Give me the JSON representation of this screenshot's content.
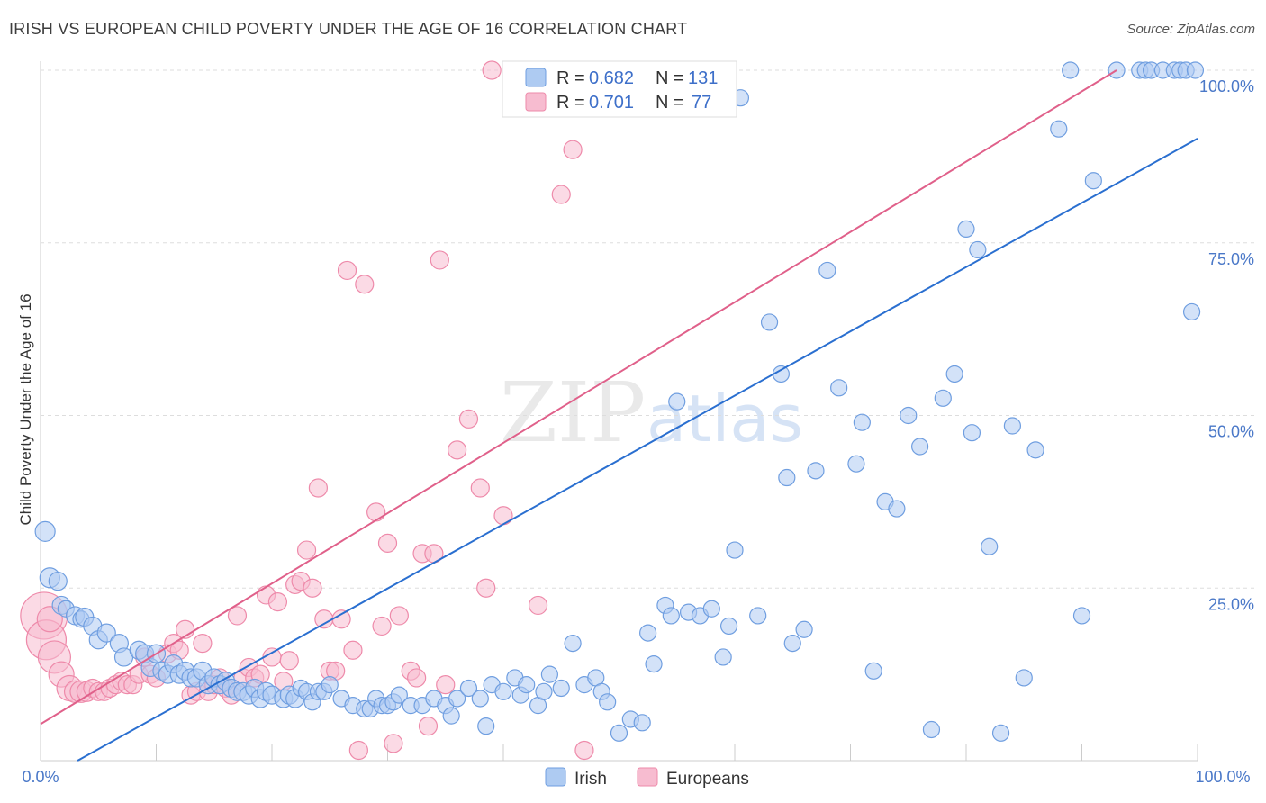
{
  "title": "IRISH VS EUROPEAN CHILD POVERTY UNDER THE AGE OF 16 CORRELATION CHART",
  "source": "Source: ZipAtlas.com",
  "watermark": {
    "zip": "ZIP",
    "atlas": "atlas"
  },
  "colors": {
    "irish_fill": "#aecbf2",
    "irish_stroke": "#6f9ee0",
    "irish_line": "#2a6fd0",
    "europeans_fill": "#f7bcd0",
    "europeans_stroke": "#ee8aaa",
    "europeans_line": "#e0608a",
    "tick_text": "#4a78c8",
    "grid": "#dddddd"
  },
  "legend": {
    "r_label": "R =",
    "n_label": "N =",
    "items": [
      {
        "series": "Irish",
        "r": "0.682",
        "n": "131"
      },
      {
        "series": "Europeans",
        "r": "0.701",
        "n": "77"
      }
    ]
  },
  "chart_data": {
    "type": "scatter",
    "title": "IRISH VS EUROPEAN CHILD POVERTY UNDER THE AGE OF 16 CORRELATION CHART",
    "xlabel": "",
    "ylabel": "Child Poverty Under the Age of 16",
    "xlim": [
      0,
      100
    ],
    "ylim": [
      0,
      100
    ],
    "x_tick_labels": [
      "0.0%",
      "100.0%"
    ],
    "y_tick_labels": [
      "25.0%",
      "50.0%",
      "75.0%",
      "100.0%"
    ],
    "y_ticks": [
      25,
      50,
      75,
      100
    ],
    "grid": true,
    "legend_position": "top-center",
    "series": [
      {
        "name": "Irish",
        "trendline": [
          [
            3.2,
            0
          ],
          [
            100,
            90.1
          ]
        ],
        "points": [
          [
            0.4,
            33.2,
            11
          ],
          [
            0.8,
            26.5,
            11
          ],
          [
            1.5,
            26,
            10
          ],
          [
            1.8,
            22.5,
            10
          ],
          [
            2.2,
            22,
            9
          ],
          [
            3,
            21,
            10
          ],
          [
            3.5,
            20.5,
            9
          ],
          [
            3.8,
            20.8,
            10
          ],
          [
            4.5,
            19.5,
            10
          ],
          [
            5,
            17.5,
            10
          ],
          [
            5.7,
            18.5,
            10
          ],
          [
            6.8,
            17,
            10
          ],
          [
            7.2,
            15,
            10
          ],
          [
            8.5,
            16,
            10
          ],
          [
            9,
            15.5,
            10
          ],
          [
            9.5,
            13.5,
            10
          ],
          [
            10,
            15.5,
            10
          ],
          [
            10.5,
            13,
            10
          ],
          [
            11,
            12.5,
            10
          ],
          [
            11.5,
            14,
            10
          ],
          [
            12,
            12.5,
            10
          ],
          [
            12.5,
            13,
            10
          ],
          [
            13,
            12,
            10
          ],
          [
            13.5,
            12,
            10
          ],
          [
            14,
            13,
            10
          ],
          [
            14.5,
            11,
            10
          ],
          [
            15,
            12,
            10
          ],
          [
            15.5,
            11,
            10
          ],
          [
            16,
            11.5,
            10
          ],
          [
            16.5,
            10.5,
            10
          ],
          [
            17,
            10,
            10
          ],
          [
            17.5,
            10,
            10
          ],
          [
            18,
            9.5,
            10
          ],
          [
            18.5,
            10.5,
            10
          ],
          [
            19,
            9,
            10
          ],
          [
            19.5,
            10,
            10
          ],
          [
            20,
            9.5,
            10
          ],
          [
            21,
            9,
            10
          ],
          [
            21.5,
            9.5,
            10
          ],
          [
            22,
            9,
            10
          ],
          [
            22.5,
            10.5,
            9
          ],
          [
            23,
            10,
            9
          ],
          [
            23.5,
            8.5,
            9
          ],
          [
            24,
            10,
            9
          ],
          [
            24.5,
            10,
            9
          ],
          [
            25,
            11,
            9
          ],
          [
            26,
            9,
            9
          ],
          [
            27,
            8,
            9
          ],
          [
            28,
            7.5,
            9
          ],
          [
            28.5,
            7.5,
            9
          ],
          [
            29,
            9,
            9
          ],
          [
            29.5,
            8,
            9
          ],
          [
            30,
            8,
            9
          ],
          [
            30.5,
            8.5,
            9
          ],
          [
            31,
            9.5,
            9
          ],
          [
            32,
            8,
            9
          ],
          [
            33,
            8,
            9
          ],
          [
            34,
            9,
            9
          ],
          [
            35,
            8,
            9
          ],
          [
            35.5,
            6.5,
            9
          ],
          [
            36,
            9,
            9
          ],
          [
            37,
            10.5,
            9
          ],
          [
            38,
            9,
            9
          ],
          [
            38.5,
            5,
            9
          ],
          [
            39,
            11,
            9
          ],
          [
            40,
            10,
            9
          ],
          [
            41,
            12,
            9
          ],
          [
            41.5,
            9.5,
            9
          ],
          [
            42,
            11,
            9
          ],
          [
            43,
            8,
            9
          ],
          [
            43.5,
            10,
            9
          ],
          [
            44,
            12.5,
            9
          ],
          [
            45,
            10.5,
            9
          ],
          [
            46,
            17,
            9
          ],
          [
            47,
            11,
            9
          ],
          [
            48,
            12,
            9
          ],
          [
            48.5,
            10,
            9
          ],
          [
            49,
            8.5,
            9
          ],
          [
            50,
            4,
            9
          ],
          [
            51,
            6,
            9
          ],
          [
            52,
            5.5,
            9
          ],
          [
            52.5,
            18.5,
            9
          ],
          [
            53,
            14,
            9
          ],
          [
            54,
            22.5,
            9
          ],
          [
            54.5,
            21,
            9
          ],
          [
            55,
            52,
            9
          ],
          [
            56,
            21.5,
            9
          ],
          [
            57,
            21,
            9
          ],
          [
            58,
            22,
            9
          ],
          [
            59,
            15,
            9
          ],
          [
            59.5,
            19.5,
            9
          ],
          [
            60,
            30.5,
            9
          ],
          [
            60.5,
            96,
            9
          ],
          [
            62,
            21,
            9
          ],
          [
            63,
            63.5,
            9
          ],
          [
            64,
            56,
            9
          ],
          [
            64.5,
            41,
            9
          ],
          [
            65,
            17,
            9
          ],
          [
            66,
            19,
            9
          ],
          [
            67,
            42,
            9
          ],
          [
            68,
            71,
            9
          ],
          [
            69,
            54,
            9
          ],
          [
            70.5,
            43,
            9
          ],
          [
            71,
            49,
            9
          ],
          [
            72,
            13,
            9
          ],
          [
            73,
            37.5,
            9
          ],
          [
            74,
            36.5,
            9
          ],
          [
            75,
            50,
            9
          ],
          [
            76,
            45.5,
            9
          ],
          [
            77,
            4.5,
            9
          ],
          [
            78,
            52.5,
            9
          ],
          [
            79,
            56,
            9
          ],
          [
            80,
            77,
            9
          ],
          [
            80.5,
            47.5,
            9
          ],
          [
            81,
            74,
            9
          ],
          [
            82,
            31,
            9
          ],
          [
            83,
            4,
            9
          ],
          [
            84,
            48.5,
            9
          ],
          [
            85,
            12,
            9
          ],
          [
            86,
            45,
            9
          ],
          [
            88,
            91.5,
            9
          ],
          [
            89,
            100,
            9
          ],
          [
            90,
            21,
            9
          ],
          [
            91,
            84,
            9
          ],
          [
            93,
            100,
            9
          ],
          [
            95,
            100,
            9
          ],
          [
            95.5,
            100,
            9
          ],
          [
            96,
            100,
            9
          ],
          [
            97,
            100,
            9
          ],
          [
            98,
            100,
            9
          ],
          [
            98.5,
            100,
            9
          ],
          [
            99,
            100,
            9
          ],
          [
            99.5,
            65,
            9
          ],
          [
            99.8,
            100,
            9
          ]
        ]
      },
      {
        "name": "Europeans",
        "trendline": [
          [
            0,
            5.3
          ],
          [
            93,
            100
          ]
        ],
        "points": [
          [
            0.3,
            21,
            26
          ],
          [
            0.5,
            17.5,
            22
          ],
          [
            0.8,
            20.5,
            14
          ],
          [
            1.2,
            15,
            18
          ],
          [
            1.8,
            12.5,
            14
          ],
          [
            2.5,
            10.5,
            14
          ],
          [
            3,
            10,
            12
          ],
          [
            3.5,
            10,
            12
          ],
          [
            4,
            10,
            11
          ],
          [
            4.5,
            10.5,
            10
          ],
          [
            5,
            10,
            10
          ],
          [
            5.5,
            10,
            10
          ],
          [
            6,
            10.5,
            10
          ],
          [
            6.5,
            11,
            10
          ],
          [
            7,
            11.5,
            10
          ],
          [
            7.5,
            11,
            10
          ],
          [
            8,
            11,
            10
          ],
          [
            8.5,
            12.5,
            10
          ],
          [
            9,
            15,
            10
          ],
          [
            9.5,
            12.5,
            10
          ],
          [
            10,
            12,
            10
          ],
          [
            11,
            15.5,
            10
          ],
          [
            11.5,
            17,
            10
          ],
          [
            12,
            16,
            10
          ],
          [
            12.5,
            19,
            10
          ],
          [
            13,
            9.5,
            10
          ],
          [
            13.5,
            10,
            10
          ],
          [
            14,
            17,
            10
          ],
          [
            14.5,
            10,
            10
          ],
          [
            15,
            11,
            10
          ],
          [
            15.5,
            12,
            10
          ],
          [
            16,
            10.5,
            10
          ],
          [
            16.5,
            9.5,
            10
          ],
          [
            17,
            21,
            10
          ],
          [
            17.5,
            12,
            10
          ],
          [
            18,
            13.5,
            10
          ],
          [
            18.5,
            12,
            10
          ],
          [
            19,
            12.5,
            10
          ],
          [
            19.5,
            24,
            10
          ],
          [
            20,
            15,
            10
          ],
          [
            20.5,
            23,
            10
          ],
          [
            21,
            11.5,
            10
          ],
          [
            21.5,
            14.5,
            10
          ],
          [
            22,
            25.5,
            10
          ],
          [
            22.5,
            26,
            10
          ],
          [
            23,
            30.5,
            10
          ],
          [
            23.5,
            25,
            10
          ],
          [
            24,
            39.5,
            10
          ],
          [
            24.5,
            20.5,
            10
          ],
          [
            25,
            13,
            10
          ],
          [
            25.5,
            13,
            10
          ],
          [
            26,
            20.5,
            10
          ],
          [
            26.5,
            71,
            10
          ],
          [
            27,
            16,
            10
          ],
          [
            27.5,
            1.5,
            10
          ],
          [
            28,
            69,
            10
          ],
          [
            29,
            36,
            10
          ],
          [
            29.5,
            19.5,
            10
          ],
          [
            30,
            31.5,
            10
          ],
          [
            30.5,
            2.5,
            10
          ],
          [
            31,
            21,
            10
          ],
          [
            32,
            13,
            10
          ],
          [
            32.5,
            12,
            10
          ],
          [
            33,
            30,
            10
          ],
          [
            33.5,
            5,
            10
          ],
          [
            34,
            30,
            10
          ],
          [
            34.5,
            72.5,
            10
          ],
          [
            35,
            11,
            10
          ],
          [
            36,
            45,
            10
          ],
          [
            37,
            49.5,
            10
          ],
          [
            38,
            39.5,
            10
          ],
          [
            38.5,
            25,
            10
          ],
          [
            39,
            100,
            10
          ],
          [
            40,
            35.5,
            10
          ],
          [
            43,
            22.5,
            10
          ],
          [
            45,
            82,
            10
          ],
          [
            46,
            88.5,
            10
          ],
          [
            47,
            1.5,
            10
          ]
        ]
      }
    ]
  }
}
